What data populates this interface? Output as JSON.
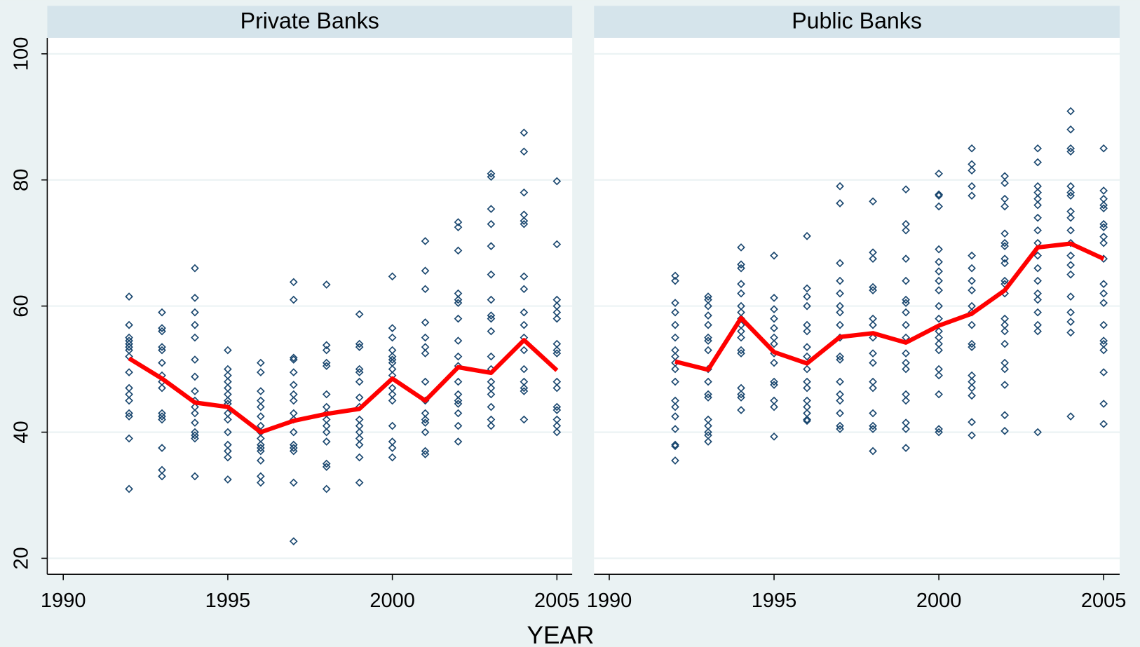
{
  "xlabel": "YEAR",
  "chart_data": [
    {
      "type": "scatter",
      "title": "Private Banks",
      "xlim": [
        1990,
        2005
      ],
      "xticks": [
        1990,
        1995,
        2000,
        2005
      ],
      "ylim": [
        20,
        100
      ],
      "yticks": [
        20,
        40,
        60,
        80,
        100
      ],
      "grid": true,
      "point_color": "#1a476f",
      "groups": [
        {
          "x": 1992,
          "values": [
            61.5,
            57,
            55,
            54.5,
            54,
            53.5,
            53,
            52,
            49.5,
            47,
            46,
            45,
            43,
            42.5,
            39,
            31
          ]
        },
        {
          "x": 1993,
          "values": [
            59,
            56.5,
            56,
            53.5,
            53,
            51,
            49,
            48,
            47,
            43,
            42.5,
            42,
            37.5,
            34,
            33
          ]
        },
        {
          "x": 1994,
          "values": [
            66,
            61.3,
            59,
            57,
            55,
            51.5,
            48.8,
            46.5,
            45,
            44,
            43,
            41.5,
            40,
            39.5,
            39,
            33
          ]
        },
        {
          "x": 1995,
          "values": [
            53,
            50,
            49,
            48,
            47,
            46,
            45,
            44.5,
            43,
            42,
            40,
            38,
            37,
            36,
            32.5
          ]
        },
        {
          "x": 1996,
          "values": [
            51,
            49.5,
            46.5,
            45,
            44,
            42.5,
            41,
            40,
            39,
            38,
            37.5,
            37,
            35.5,
            33,
            32
          ]
        },
        {
          "x": 1997,
          "values": [
            63.8,
            61,
            51.8,
            51.5,
            49.5,
            47.5,
            46,
            45,
            43,
            42,
            40,
            38,
            37.5,
            37,
            32,
            22.7
          ]
        },
        {
          "x": 1998,
          "values": [
            63.4,
            53.8,
            53,
            51,
            50.5,
            46,
            44,
            43,
            42,
            41,
            40,
            38.5,
            35,
            34.5,
            31
          ]
        },
        {
          "x": 1999,
          "values": [
            58.7,
            54,
            53.5,
            50,
            49.5,
            48,
            45.5,
            44,
            42,
            41,
            40,
            39,
            38,
            36,
            32
          ]
        },
        {
          "x": 2000,
          "values": [
            64.7,
            56.5,
            55,
            53,
            52,
            51.5,
            51,
            50,
            49,
            47,
            46,
            45,
            41,
            38.5,
            37.5,
            36
          ]
        },
        {
          "x": 2001,
          "values": [
            70.3,
            65.6,
            62.7,
            57.4,
            55,
            53.5,
            52.5,
            48,
            45,
            43,
            42,
            41.5,
            40,
            37,
            36.5
          ]
        },
        {
          "x": 2002,
          "values": [
            73.3,
            72.5,
            68.8,
            62,
            61,
            60.5,
            58,
            54.5,
            52,
            50.5,
            48,
            46,
            45,
            44.5,
            43,
            41,
            38.5
          ]
        },
        {
          "x": 2003,
          "values": [
            81,
            80.5,
            75.4,
            73,
            69.5,
            65,
            61,
            58.5,
            58,
            56,
            52,
            50,
            48,
            47,
            46,
            44,
            42,
            41
          ]
        },
        {
          "x": 2004,
          "values": [
            87.5,
            84.5,
            78,
            74.5,
            73.5,
            73,
            64.7,
            62.7,
            59,
            57,
            55,
            53,
            50,
            48,
            47,
            46.5,
            42
          ]
        },
        {
          "x": 2005,
          "values": [
            79.8,
            69.8,
            61,
            60,
            59,
            58,
            54,
            53,
            52.5,
            48,
            47,
            44,
            43.5,
            42,
            41,
            40
          ]
        }
      ],
      "line": {
        "color": "#ff0000",
        "x": [
          1992,
          1993,
          1994,
          1995,
          1996,
          1997,
          1998,
          1999,
          2000,
          2001,
          2002,
          2003,
          2004,
          2005
        ],
        "values": [
          51.7,
          48.5,
          44.7,
          44,
          40,
          41.8,
          42.9,
          43.7,
          48.5,
          45,
          50.3,
          49.4,
          54.6,
          49.8
        ]
      }
    },
    {
      "type": "scatter",
      "title": "Public Banks",
      "xlim": [
        1990,
        2005
      ],
      "xticks": [
        1990,
        1995,
        2000,
        2005
      ],
      "ylim": [
        20,
        100
      ],
      "yticks": [
        20,
        40,
        60,
        80,
        100
      ],
      "grid": true,
      "point_color": "#1a476f",
      "groups": [
        {
          "x": 1992,
          "values": [
            64.8,
            64,
            60.5,
            59,
            57,
            55,
            53,
            52,
            51,
            50,
            48,
            45,
            44,
            42.5,
            40.5,
            38,
            37.8,
            35.5
          ]
        },
        {
          "x": 1993,
          "values": [
            61.5,
            61,
            60,
            58.5,
            57,
            55,
            54.5,
            53,
            50,
            48,
            46,
            45.5,
            42,
            41,
            40,
            39.5,
            38.5
          ]
        },
        {
          "x": 1994,
          "values": [
            69.3,
            66.6,
            66,
            63.5,
            62,
            60,
            59,
            58,
            57,
            56,
            55,
            53,
            52.5,
            47,
            46,
            45.5,
            43.5
          ]
        },
        {
          "x": 1995,
          "values": [
            68,
            61.3,
            59.5,
            58,
            56.5,
            55,
            54,
            52.5,
            51,
            48,
            47.5,
            45,
            44,
            39.3
          ]
        },
        {
          "x": 1996,
          "values": [
            71.1,
            62.8,
            61.5,
            60,
            57,
            56,
            53.5,
            52,
            50,
            48,
            47,
            45,
            44,
            43,
            42,
            41.8
          ]
        },
        {
          "x": 1997,
          "values": [
            79,
            76.3,
            66.8,
            64,
            62,
            60,
            59,
            57,
            55,
            52,
            51.5,
            48,
            46,
            45,
            43,
            41,
            40.5
          ]
        },
        {
          "x": 1998,
          "values": [
            76.6,
            68.5,
            67.5,
            63,
            62.5,
            58,
            57,
            55,
            52.5,
            51,
            48,
            47,
            43,
            41,
            40.5,
            37
          ]
        },
        {
          "x": 1999,
          "values": [
            78.5,
            73,
            72,
            67.5,
            64,
            61,
            60.5,
            59,
            57,
            55,
            52.5,
            51,
            50,
            46,
            45,
            41.5,
            40.5,
            37.5
          ]
        },
        {
          "x": 2000,
          "values": [
            81,
            77.7,
            77.5,
            75.8,
            69,
            67,
            65.5,
            64,
            62.5,
            60,
            58,
            56,
            55,
            54,
            53,
            50,
            49,
            46,
            40.5,
            40
          ]
        },
        {
          "x": 2001,
          "values": [
            85,
            82.5,
            81.5,
            79,
            77.5,
            68,
            66,
            64,
            62.5,
            60,
            59,
            57,
            54,
            53.5,
            49,
            48,
            47,
            45.8,
            41.6,
            39.5
          ]
        },
        {
          "x": 2002,
          "values": [
            80.6,
            79.5,
            77,
            75.8,
            71.5,
            70,
            69.5,
            67.5,
            66.8,
            64,
            63.5,
            62,
            58,
            57,
            56,
            54,
            51,
            50,
            47.5,
            42.7,
            40.2
          ]
        },
        {
          "x": 2003,
          "values": [
            85,
            82.8,
            79,
            78,
            77,
            76,
            74,
            72,
            70,
            68,
            66,
            64,
            62,
            61,
            59,
            57,
            56,
            40
          ]
        },
        {
          "x": 2004,
          "values": [
            90.9,
            88,
            85,
            84.5,
            79,
            78,
            77.5,
            75,
            74,
            72,
            70,
            68,
            66.5,
            65,
            61.5,
            59,
            57.5,
            55.8,
            42.5
          ]
        },
        {
          "x": 2005,
          "values": [
            85,
            78.3,
            77,
            76,
            75.5,
            73,
            72.5,
            71,
            70,
            67.5,
            63.5,
            62,
            60.5,
            57,
            54.5,
            54,
            53,
            49.5,
            44.5,
            41.3
          ]
        }
      ],
      "line": {
        "color": "#ff0000",
        "x": [
          1992,
          1993,
          1994,
          1995,
          1996,
          1997,
          1998,
          1999,
          2000,
          2001,
          2002,
          2003,
          2004,
          2005
        ],
        "values": [
          51.2,
          49.9,
          58.1,
          52.7,
          50.9,
          55.1,
          55.7,
          54.2,
          56.9,
          58.8,
          62.5,
          69.3,
          69.9,
          67.5
        ]
      }
    }
  ]
}
